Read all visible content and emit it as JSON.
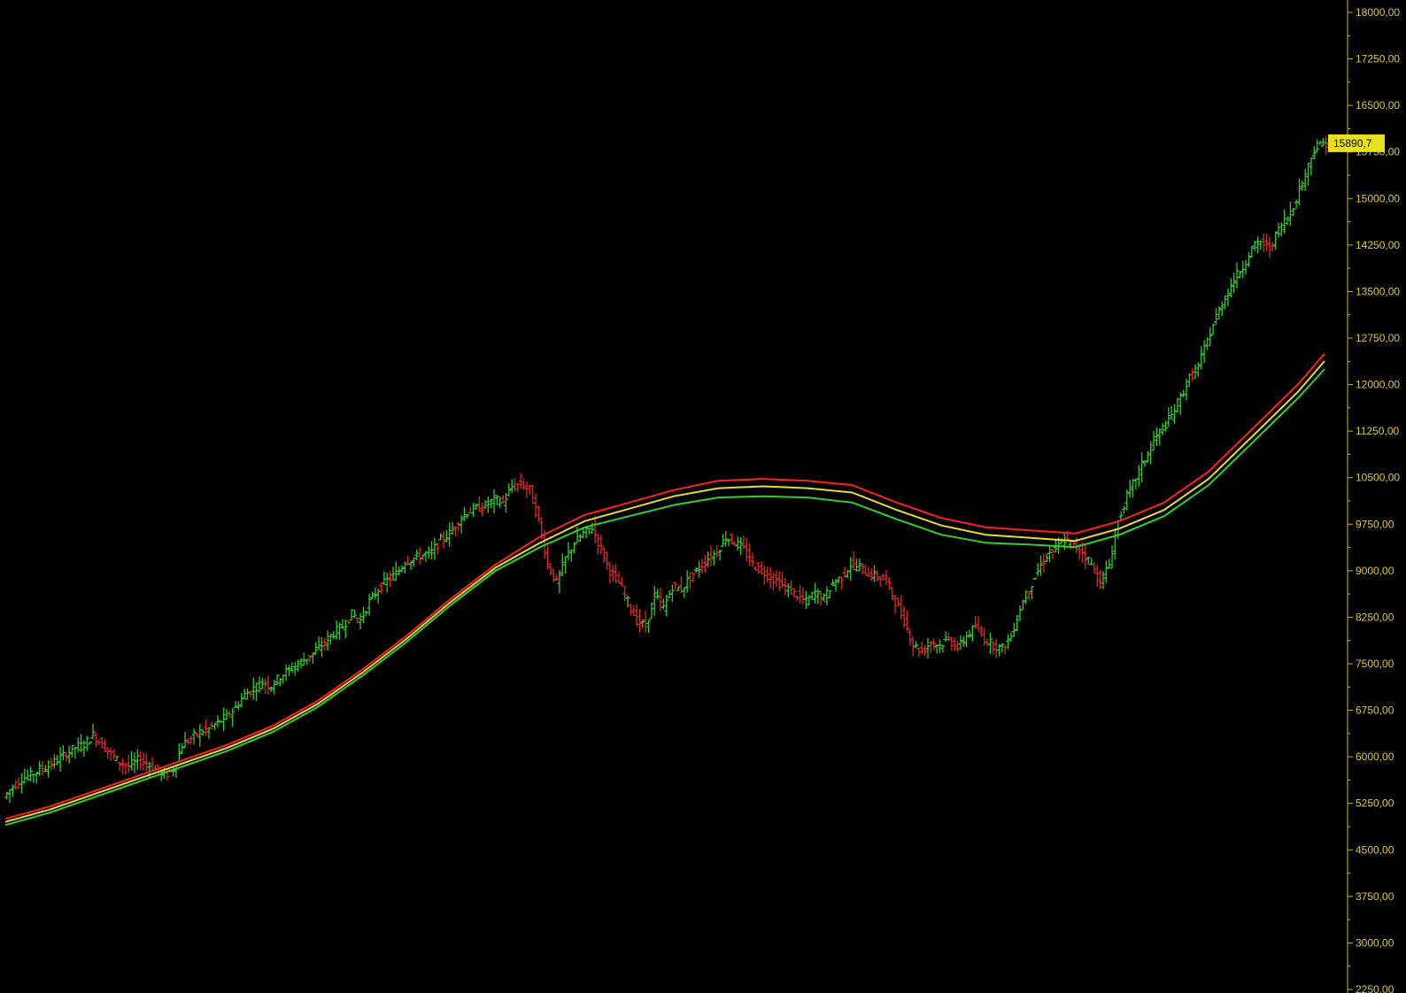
{
  "chart_data": {
    "type": "line",
    "title": "",
    "xlabel": "",
    "ylabel": "",
    "ylim": [
      2250,
      18000
    ],
    "y_ticks": [
      "18000,00",
      "17250,00",
      "16500,00",
      "15750,00",
      "15000,00",
      "14250,00",
      "13500,00",
      "12750,00",
      "12000,00",
      "11250,00",
      "10500,00",
      "9750,00",
      "9000,00",
      "8250,00",
      "7500,00",
      "6750,00",
      "6000,00",
      "5250,00",
      "4500,00",
      "3750,00",
      "3000,00",
      "2250,00"
    ],
    "y_tick_values": [
      18000,
      17250,
      16500,
      15750,
      15000,
      14250,
      13500,
      12750,
      12000,
      11250,
      10500,
      9750,
      9000,
      8250,
      7500,
      6750,
      6000,
      5250,
      4500,
      3750,
      3000,
      2250
    ],
    "grid": false,
    "last_value": 15890.7,
    "last_value_label": "15890,7",
    "price": {
      "name": "",
      "x": [
        0,
        10,
        20,
        30,
        40,
        50,
        60,
        70,
        80,
        90,
        100,
        110,
        120,
        130,
        140,
        150,
        160,
        170,
        180,
        190,
        200,
        210,
        220,
        230,
        240,
        250,
        260,
        270,
        280,
        290,
        300,
        310,
        320,
        330,
        340,
        350,
        360,
        370,
        380,
        390,
        400,
        410,
        420,
        430,
        440,
        450,
        460,
        470,
        480,
        490,
        500,
        510,
        520,
        530,
        540,
        550,
        560,
        570,
        580,
        590,
        600,
        610,
        620,
        630,
        640,
        650,
        660,
        670,
        680,
        690,
        700,
        710,
        720,
        730,
        740,
        750,
        760,
        770,
        780,
        790,
        800,
        810,
        820,
        830,
        840,
        850,
        860,
        870,
        880,
        890,
        900,
        910,
        920,
        930,
        940,
        950,
        960,
        970,
        980,
        990,
        1000,
        1010,
        1020,
        1030,
        1040,
        1050,
        1060,
        1070,
        1080,
        1090,
        1100,
        1110,
        1120,
        1130,
        1140,
        1150,
        1160,
        1170,
        1180,
        1190,
        1200,
        1210,
        1220,
        1230,
        1240,
        1250,
        1260,
        1270,
        1280,
        1290,
        1300,
        1310,
        1320,
        1330,
        1340,
        1350,
        1360,
        1370,
        1380,
        1390,
        1400,
        1410,
        1420,
        1430,
        1440,
        1450,
        1460,
        1470,
        1480
      ],
      "values": [
        5350,
        5520,
        5650,
        5700,
        5800,
        5850,
        5950,
        6050,
        6150,
        6200,
        6350,
        6200,
        6050,
        5900,
        5850,
        5950,
        5900,
        5800,
        5700,
        5800,
        6200,
        6300,
        6400,
        6450,
        6550,
        6650,
        6800,
        7000,
        7100,
        7200,
        7150,
        7300,
        7400,
        7500,
        7600,
        7700,
        7850,
        8000,
        8100,
        8300,
        8200,
        8500,
        8700,
        8850,
        8950,
        9150,
        9200,
        9250,
        9300,
        9500,
        9600,
        9800,
        9950,
        10000,
        10050,
        10150,
        10100,
        10350,
        10400,
        10300,
        9800,
        9100,
        8800,
        9200,
        9450,
        9600,
        9700,
        9350,
        9000,
        8800,
        8500,
        8200,
        8100,
        8600,
        8400,
        8750,
        8700,
        8900,
        9050,
        9200,
        9300,
        9550,
        9450,
        9350,
        9100,
        9000,
        8900,
        8800,
        8700,
        8600,
        8500,
        8650,
        8550,
        8800,
        8900,
        9100,
        9050,
        8950,
        8900,
        8850,
        8500,
        8200,
        7800,
        7700,
        7850,
        7800,
        7900,
        7750,
        7950,
        8100,
        7900,
        7800,
        7750,
        7950,
        8400,
        8700,
        9000,
        9250,
        9350,
        9500,
        9400,
        9300,
        9100,
        8800,
        9100,
        9800,
        10200,
        10500,
        10800,
        11100,
        11300,
        11500,
        11800,
        12100,
        12300,
        12700,
        13100,
        13400,
        13700,
        13900,
        14200,
        14300,
        14200,
        14500,
        14700,
        15000,
        15400,
        15800,
        15890.7
      ]
    },
    "series": [
      {
        "name": "",
        "color": "#ff2020",
        "x": [
          0,
          50,
          100,
          150,
          200,
          250,
          300,
          350,
          400,
          450,
          500,
          550,
          600,
          650,
          700,
          750,
          800,
          850,
          900,
          950,
          1000,
          1050,
          1100,
          1150,
          1200,
          1250,
          1300,
          1350,
          1400,
          1450,
          1480
        ],
        "values": [
          5000,
          5200,
          5450,
          5700,
          5950,
          6200,
          6500,
          6900,
          7400,
          7950,
          8550,
          9100,
          9550,
          9900,
          10100,
          10300,
          10450,
          10480,
          10450,
          10380,
          10100,
          9850,
          9700,
          9650,
          9600,
          9800,
          10100,
          10600,
          11300,
          12000,
          12500
        ]
      },
      {
        "name": "",
        "color": "#e8d840",
        "x": [
          0,
          50,
          100,
          150,
          200,
          250,
          300,
          350,
          400,
          450,
          500,
          550,
          600,
          650,
          700,
          750,
          800,
          850,
          900,
          950,
          1000,
          1050,
          1100,
          1150,
          1200,
          1250,
          1300,
          1350,
          1400,
          1450,
          1480
        ],
        "values": [
          4950,
          5150,
          5400,
          5650,
          5900,
          6150,
          6450,
          6850,
          7350,
          7900,
          8500,
          9050,
          9450,
          9800,
          10000,
          10200,
          10330,
          10360,
          10330,
          10260,
          9980,
          9730,
          9580,
          9530,
          9480,
          9680,
          9980,
          10480,
          11180,
          11880,
          12380
        ]
      },
      {
        "name": "",
        "color": "#30d030",
        "x": [
          0,
          50,
          100,
          150,
          200,
          250,
          300,
          350,
          400,
          450,
          500,
          550,
          600,
          650,
          700,
          750,
          800,
          850,
          900,
          950,
          1000,
          1050,
          1100,
          1150,
          1200,
          1250,
          1300,
          1350,
          1400,
          1450,
          1480
        ],
        "values": [
          4900,
          5100,
          5350,
          5600,
          5850,
          6100,
          6400,
          6800,
          7300,
          7850,
          8450,
          9000,
          9380,
          9700,
          9880,
          10060,
          10180,
          10200,
          10180,
          10100,
          9830,
          9580,
          9450,
          9420,
          9380,
          9580,
          9880,
          10380,
          11080,
          11780,
          12250
        ]
      }
    ]
  }
}
